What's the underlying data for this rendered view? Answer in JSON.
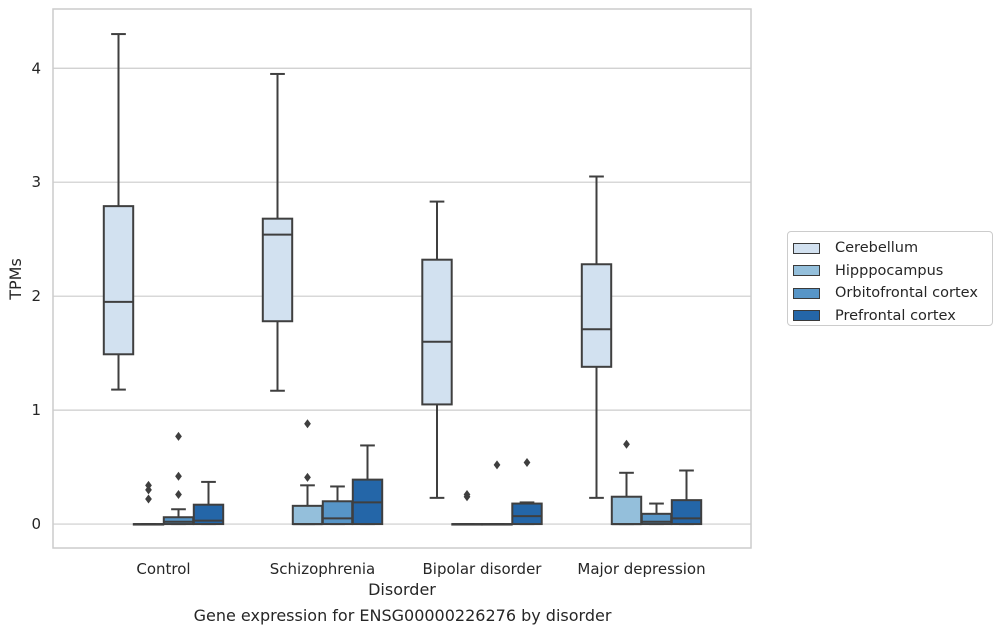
{
  "chart_data": {
    "type": "boxplot",
    "title": "",
    "caption": "Gene expression for ENSG00000226276 by disorder",
    "xlabel": "Disorder",
    "ylabel": "TPMs",
    "ylim": [
      -0.21,
      4.52
    ],
    "yticks": [
      0,
      1,
      2,
      3,
      4
    ],
    "grid": "horizontal",
    "legend_placement": "right",
    "categories": [
      "Control",
      "Schizophrenia",
      "Bipolar disorder",
      "Major depression"
    ],
    "series": [
      {
        "name": "Cerebellum",
        "color": "#d2e1f0",
        "boxes": [
          {
            "whislo": 1.18,
            "q1": 1.49,
            "med": 1.95,
            "q3": 2.79,
            "whishi": 4.3,
            "fliers": []
          },
          {
            "whislo": 1.17,
            "q1": 1.78,
            "med": 2.54,
            "q3": 2.68,
            "whishi": 3.95,
            "fliers": []
          },
          {
            "whislo": 0.23,
            "q1": 1.05,
            "med": 1.6,
            "q3": 2.32,
            "whishi": 2.83,
            "fliers": []
          },
          {
            "whislo": 0.23,
            "q1": 1.38,
            "med": 1.71,
            "q3": 2.28,
            "whishi": 3.05,
            "fliers": []
          }
        ]
      },
      {
        "name": "Hipppocampus",
        "color": "#94bfdb",
        "boxes": [
          {
            "whislo": 0,
            "q1": 0,
            "med": 0,
            "q3": 0,
            "whishi": 0,
            "fliers": [
              0.22,
              0.3,
              0.34
            ]
          },
          {
            "whislo": 0,
            "q1": 0,
            "med": 0,
            "q3": 0.16,
            "whishi": 0.34,
            "fliers": [
              0.41,
              0.88
            ]
          },
          {
            "whislo": 0,
            "q1": 0,
            "med": 0,
            "q3": 0,
            "whishi": 0,
            "fliers": [
              0.24,
              0.26
            ]
          },
          {
            "whislo": 0,
            "q1": 0,
            "med": 0,
            "q3": 0.24,
            "whishi": 0.45,
            "fliers": [
              0.7
            ]
          }
        ]
      },
      {
        "name": "Orbitofrontal cortex",
        "color": "#5795c7",
        "boxes": [
          {
            "whislo": 0,
            "q1": 0,
            "med": 0.02,
            "q3": 0.06,
            "whishi": 0.13,
            "fliers": [
              0.26,
              0.42,
              0.77
            ]
          },
          {
            "whislo": 0,
            "q1": 0,
            "med": 0.05,
            "q3": 0.2,
            "whishi": 0.33,
            "fliers": []
          },
          {
            "whislo": 0,
            "q1": 0,
            "med": 0,
            "q3": 0,
            "whishi": 0,
            "fliers": [
              0.52
            ]
          },
          {
            "whislo": 0,
            "q1": 0,
            "med": 0.02,
            "q3": 0.09,
            "whishi": 0.18,
            "fliers": []
          }
        ]
      },
      {
        "name": "Prefrontal cortex",
        "color": "#2466a8",
        "boxes": [
          {
            "whislo": 0,
            "q1": 0,
            "med": 0.03,
            "q3": 0.17,
            "whishi": 0.37,
            "fliers": []
          },
          {
            "whislo": 0,
            "q1": 0,
            "med": 0.19,
            "q3": 0.39,
            "whishi": 0.69,
            "fliers": []
          },
          {
            "whislo": 0,
            "q1": 0,
            "med": 0.07,
            "q3": 0.18,
            "whishi": 0.19,
            "fliers": [
              0.54
            ]
          },
          {
            "whislo": 0,
            "q1": 0,
            "med": 0.05,
            "q3": 0.21,
            "whishi": 0.47,
            "fliers": []
          }
        ]
      }
    ]
  }
}
